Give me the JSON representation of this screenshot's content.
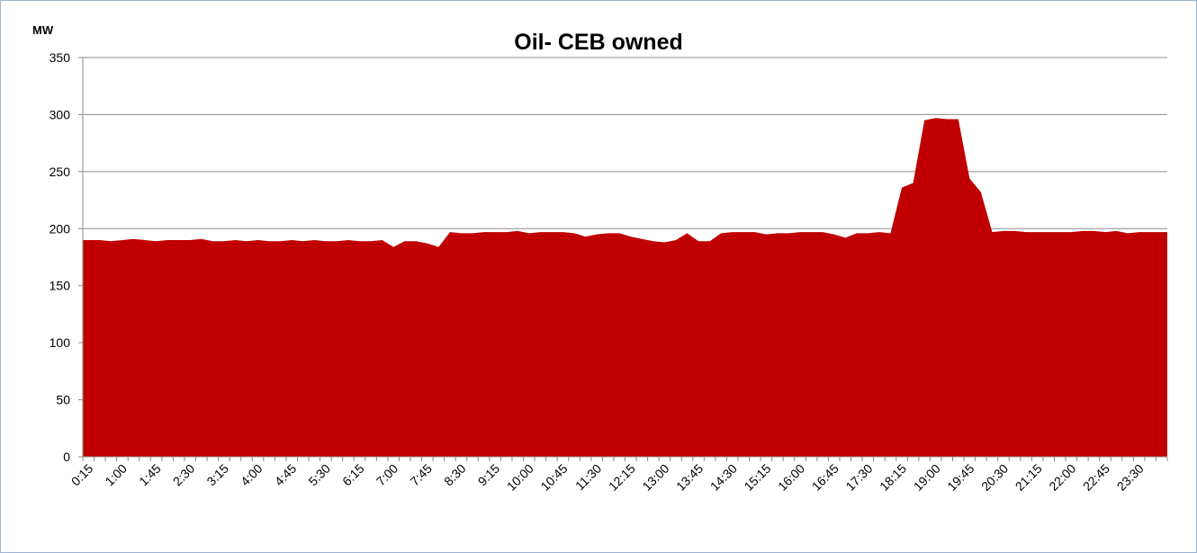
{
  "chart_data": {
    "type": "area",
    "title": "Oil- CEB owned",
    "ylabel": "MW",
    "xlabel": "",
    "ylim": [
      0,
      350
    ],
    "yticks": [
      0,
      50,
      100,
      150,
      200,
      250,
      300,
      350
    ],
    "grid": true,
    "legend": "none",
    "colors": {
      "area": "#c00000",
      "grid": "#8c8c8c",
      "axis": "#8c8c8c"
    },
    "x": [
      "0:15",
      "0:30",
      "0:45",
      "1:00",
      "1:15",
      "1:30",
      "1:45",
      "2:00",
      "2:15",
      "2:30",
      "2:45",
      "3:00",
      "3:15",
      "3:30",
      "3:45",
      "4:00",
      "4:15",
      "4:30",
      "4:45",
      "5:00",
      "5:15",
      "5:30",
      "5:45",
      "6:00",
      "6:15",
      "6:30",
      "6:45",
      "7:00",
      "7:15",
      "7:30",
      "7:45",
      "8:00",
      "8:15",
      "8:30",
      "8:45",
      "9:00",
      "9:15",
      "9:30",
      "9:45",
      "10:00",
      "10:15",
      "10:30",
      "10:45",
      "11:00",
      "11:15",
      "11:30",
      "11:45",
      "12:00",
      "12:15",
      "12:30",
      "12:45",
      "13:00",
      "13:15",
      "13:30",
      "13:45",
      "14:00",
      "14:15",
      "14:30",
      "14:45",
      "15:00",
      "15:15",
      "15:30",
      "15:45",
      "16:00",
      "16:15",
      "16:30",
      "16:45",
      "17:00",
      "17:15",
      "17:30",
      "17:45",
      "18:00",
      "18:15",
      "18:30",
      "18:45",
      "19:00",
      "19:15",
      "19:30",
      "19:45",
      "20:00",
      "20:15",
      "20:30",
      "20:45",
      "21:00",
      "21:15",
      "21:30",
      "21:45",
      "22:00",
      "22:15",
      "22:30",
      "22:45",
      "23:00",
      "23:15",
      "23:30",
      "23:45",
      "0:00"
    ],
    "xtick_labels": [
      "0:15",
      "1:00",
      "1:45",
      "2:30",
      "3:15",
      "4:00",
      "4:45",
      "5:30",
      "6:15",
      "7:00",
      "7:45",
      "8:30",
      "9:15",
      "10:00",
      "10:45",
      "11:30",
      "12:15",
      "13:00",
      "13:45",
      "14:30",
      "15:15",
      "16:00",
      "16:45",
      "17:30",
      "18:15",
      "19:00",
      "19:45",
      "20:30",
      "21:15",
      "22:00",
      "22:45",
      "23:30"
    ],
    "series": [
      {
        "name": "",
        "values": [
          190,
          190,
          189,
          190,
          191,
          190,
          189,
          190,
          190,
          190,
          191,
          189,
          189,
          190,
          189,
          190,
          189,
          189,
          190,
          189,
          190,
          189,
          189,
          190,
          189,
          189,
          190,
          184,
          189,
          189,
          187,
          184,
          197,
          196,
          196,
          197,
          197,
          197,
          198,
          196,
          197,
          197,
          197,
          196,
          193,
          195,
          196,
          196,
          193,
          191,
          189,
          188,
          190,
          196,
          189,
          189,
          196,
          197,
          197,
          197,
          195,
          196,
          196,
          197,
          197,
          197,
          195,
          192,
          196,
          196,
          197,
          196,
          236,
          240,
          295,
          297,
          296,
          296,
          244,
          232,
          197,
          198,
          198,
          197,
          197,
          197,
          197,
          197,
          198,
          198,
          197,
          198,
          196,
          197,
          197,
          197
        ]
      }
    ]
  }
}
